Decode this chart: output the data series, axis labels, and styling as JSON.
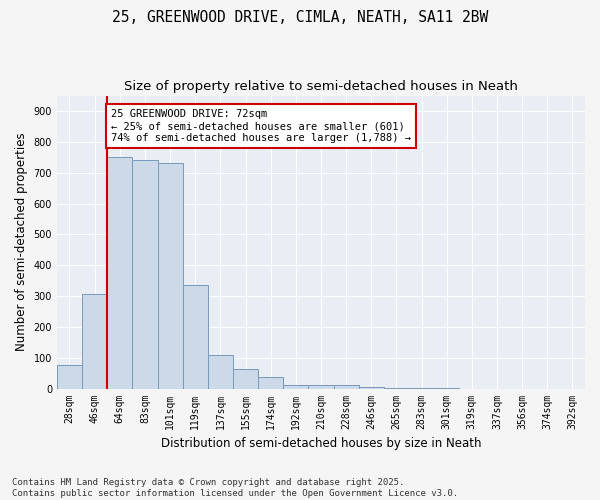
{
  "title_line1": "25, GREENWOOD DRIVE, CIMLA, NEATH, SA11 2BW",
  "title_line2": "Size of property relative to semi-detached houses in Neath",
  "xlabel": "Distribution of semi-detached houses by size in Neath",
  "ylabel": "Number of semi-detached properties",
  "categories": [
    "28sqm",
    "46sqm",
    "64sqm",
    "83sqm",
    "101sqm",
    "119sqm",
    "137sqm",
    "155sqm",
    "174sqm",
    "192sqm",
    "210sqm",
    "228sqm",
    "246sqm",
    "265sqm",
    "283sqm",
    "301sqm",
    "319sqm",
    "337sqm",
    "356sqm",
    "374sqm",
    "392sqm"
  ],
  "values": [
    75,
    308,
    750,
    740,
    730,
    335,
    108,
    65,
    38,
    12,
    10,
    10,
    5,
    2,
    1,
    1,
    0,
    0,
    0,
    0,
    0
  ],
  "bar_color": "#ccd9e8",
  "bar_edge_color": "#7799bb",
  "annotation_box_text": "25 GREENWOOD DRIVE: 72sqm\n← 25% of semi-detached houses are smaller (601)\n74% of semi-detached houses are larger (1,788) →",
  "annotation_box_facecolor": "#ffffff",
  "annotation_box_edge": "#cc0000",
  "vertical_line_color": "#cc0000",
  "vertical_line_x": 2.0,
  "ylim": [
    0,
    950
  ],
  "yticks": [
    0,
    100,
    200,
    300,
    400,
    500,
    600,
    700,
    800,
    900
  ],
  "plot_bg_color": "#e8eef4",
  "fig_bg_color": "#f5f5f5",
  "grid_color": "#ffffff",
  "footnote": "Contains HM Land Registry data © Crown copyright and database right 2025.\nContains public sector information licensed under the Open Government Licence v3.0.",
  "title_fontsize": 10.5,
  "subtitle_fontsize": 9.5,
  "axis_label_fontsize": 8.5,
  "tick_fontsize": 7,
  "footnote_fontsize": 6.5,
  "annotation_fontsize": 7.5
}
